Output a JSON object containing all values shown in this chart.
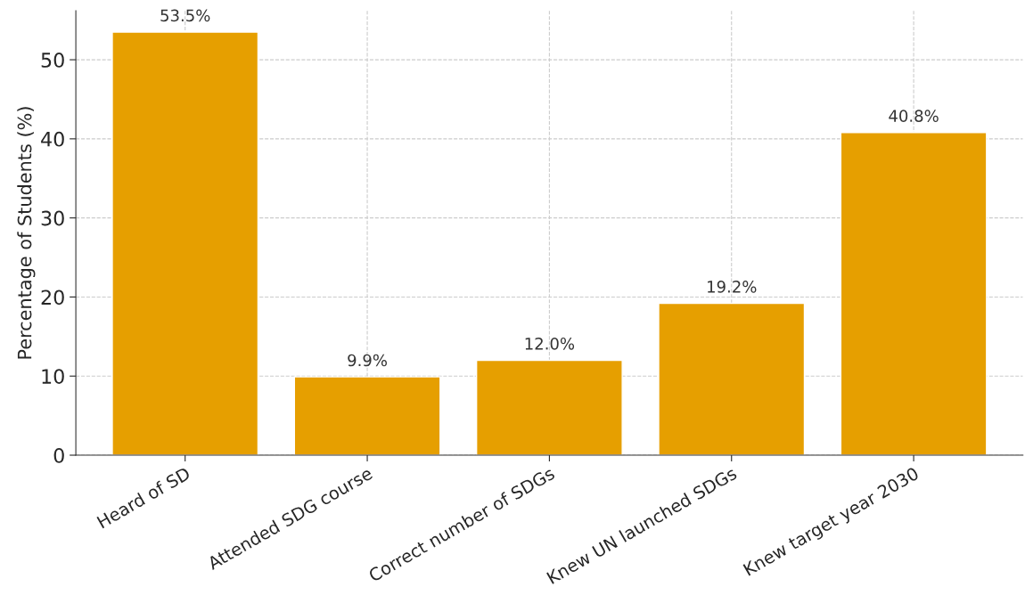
{
  "chart_data": {
    "type": "bar",
    "ylabel": "Percentage of Students (%)",
    "categories": [
      "Heard of SD",
      "Attended SDG course",
      "Correct number of SDGs",
      "Knew UN launched SDGs",
      "Knew target year 2030"
    ],
    "values": [
      53.5,
      9.9,
      12.0,
      19.2,
      40.8
    ],
    "value_labels": [
      "53.5%",
      "9.9%",
      "12.0%",
      "19.2%",
      "40.8%"
    ],
    "color": "#e69f00",
    "ylim": [
      0,
      56.2
    ],
    "yticks": [
      0,
      10,
      20,
      30,
      40,
      50
    ],
    "grid": true
  }
}
